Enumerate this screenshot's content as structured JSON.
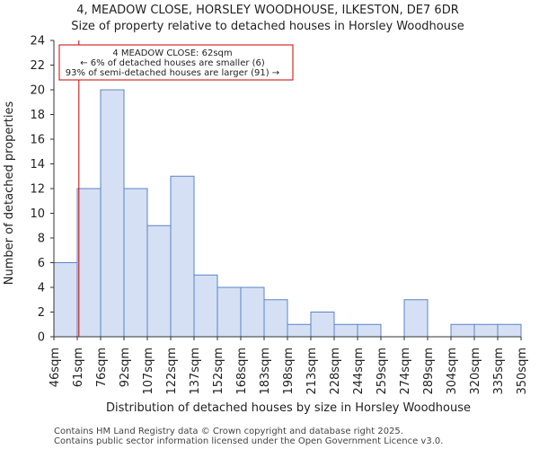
{
  "chart_data": {
    "type": "bar",
    "title": "4, MEADOW CLOSE, HORSLEY WOODHOUSE, ILKESTON, DE7 6DR",
    "subtitle": "Size of property relative to detached houses in Horsley Woodhouse",
    "xlabel": "Distribution of detached houses by size in Horsley Woodhouse",
    "ylabel": "Number of detached properties",
    "bin_edges": [
      "46sqm",
      "61sqm",
      "76sqm",
      "92sqm",
      "107sqm",
      "122sqm",
      "137sqm",
      "152sqm",
      "168sqm",
      "183sqm",
      "198sqm",
      "213sqm",
      "228sqm",
      "244sqm",
      "259sqm",
      "274sqm",
      "289sqm",
      "304sqm",
      "320sqm",
      "335sqm",
      "350sqm"
    ],
    "values": [
      6,
      12,
      20,
      12,
      9,
      13,
      5,
      4,
      4,
      3,
      1,
      2,
      1,
      1,
      0,
      3,
      0,
      1,
      1,
      1
    ],
    "ylim": [
      0,
      24
    ],
    "yticks": [
      0,
      2,
      4,
      6,
      8,
      10,
      12,
      14,
      16,
      18,
      20,
      22,
      24
    ],
    "grid": false,
    "marker": {
      "value_sqm": 62,
      "bin_position": 1.07,
      "color": "#cc0000"
    },
    "annotation": {
      "line1": "4 MEADOW CLOSE: 62sqm",
      "line2": "← 6% of detached houses are smaller (6)",
      "line3": "93% of semi-detached houses are larger (91) →"
    },
    "bar_fill": "#d6e0f4",
    "bar_edge": "#5b84c7"
  },
  "footer": {
    "line1": "Contains HM Land Registry data © Crown copyright and database right 2025.",
    "line2": "Contains public sector information licensed under the Open Government Licence v3.0."
  }
}
